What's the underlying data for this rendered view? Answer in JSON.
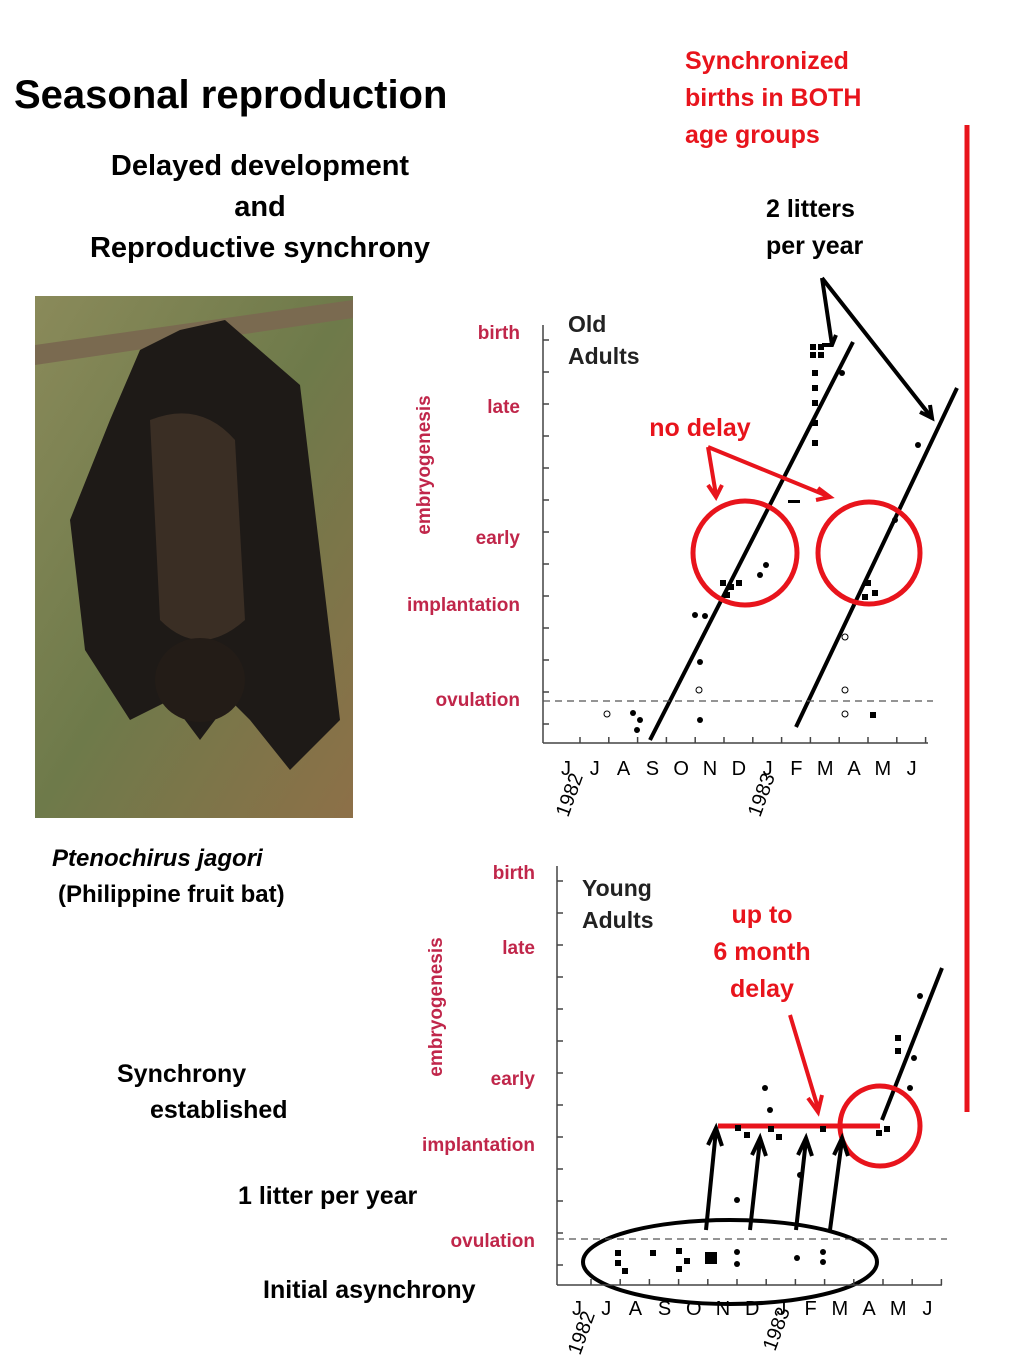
{
  "title": "Seasonal reproduction",
  "subtitle": [
    "Delayed development",
    "and",
    "Reproductive synchrony"
  ],
  "caption": {
    "species": "Ptenochirus  jagori",
    "common": "(Philippine fruit bat)"
  },
  "annotations": {
    "synchronized": [
      "Synchronized",
      "births in BOTH",
      "age groups"
    ],
    "two_litters": [
      "2 litters",
      "per year"
    ],
    "no_delay": "no delay",
    "delay": [
      "up to",
      "6 month",
      "delay"
    ],
    "synchrony": [
      "Synchrony",
      "established"
    ],
    "one_litter": "1 litter per year",
    "asynchrony": "Initial asynchrony"
  },
  "charts": [
    {
      "label": [
        "Old",
        "Adults"
      ],
      "axis_title": "embryogenesis",
      "stages": [
        "birth",
        "late",
        "early",
        "implantation",
        "ovulation"
      ],
      "months": [
        "J",
        "J",
        "A",
        "S",
        "O",
        "N",
        "D",
        "J",
        "F",
        "M",
        "A",
        "M",
        "J"
      ],
      "years": [
        "1982",
        "1983"
      ]
    },
    {
      "label": [
        "Young",
        "Adults"
      ],
      "axis_title": "embryogenesis",
      "stages": [
        "birth",
        "late",
        "early",
        "implantation",
        "ovulation"
      ],
      "months": [
        "J",
        "J",
        "A",
        "S",
        "O",
        "N",
        "D",
        "J",
        "F",
        "M",
        "A",
        "M",
        "J"
      ],
      "years": [
        "1982",
        "1983"
      ]
    }
  ]
}
